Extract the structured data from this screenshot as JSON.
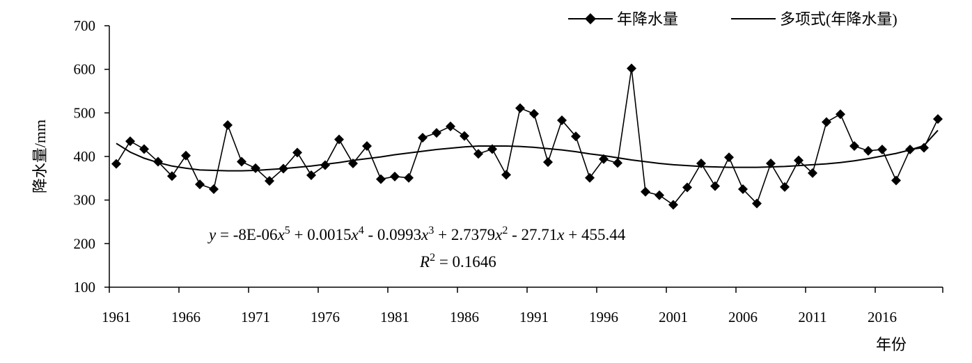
{
  "chart_data": {
    "type": "line",
    "xlabel": "年份",
    "ylabel": "降水量/mm",
    "ylim": [
      100,
      700
    ],
    "yticks": [
      100,
      200,
      300,
      400,
      500,
      600,
      700
    ],
    "xlim": [
      1961,
      2020
    ],
    "xticks": [
      1961,
      1966,
      1971,
      1976,
      1981,
      1986,
      1991,
      1996,
      2001,
      2006,
      2011,
      2016
    ],
    "grid": false,
    "legend_position": "top-right",
    "x": [
      1961,
      1962,
      1963,
      1964,
      1965,
      1966,
      1967,
      1968,
      1969,
      1970,
      1971,
      1972,
      1973,
      1974,
      1975,
      1976,
      1977,
      1978,
      1979,
      1980,
      1981,
      1982,
      1983,
      1984,
      1985,
      1986,
      1987,
      1988,
      1989,
      1990,
      1991,
      1992,
      1993,
      1994,
      1995,
      1996,
      1997,
      1998,
      1999,
      2000,
      2001,
      2002,
      2003,
      2004,
      2005,
      2006,
      2007,
      2008,
      2009,
      2010,
      2011,
      2012,
      2013,
      2014,
      2015,
      2016,
      2017,
      2018,
      2019,
      2020
    ],
    "series": [
      {
        "name": "年降水量",
        "marker": "diamond",
        "color": "#000000",
        "values": [
          383,
          435,
          417,
          388,
          355,
          402,
          336,
          325,
          472,
          388,
          373,
          344,
          372,
          409,
          357,
          380,
          439,
          384,
          424,
          348,
          354,
          351,
          443,
          454,
          469,
          447,
          406,
          417,
          358,
          511,
          498,
          387,
          483,
          446,
          351,
          394,
          385,
          602,
          319,
          311,
          289,
          329,
          384,
          332,
          398,
          325,
          292,
          384,
          330,
          391,
          362,
          479,
          497,
          424,
          413,
          416,
          345,
          416,
          420,
          486
        ]
      },
      {
        "name": "多项式(年降水量)",
        "type": "polynomial trendline",
        "color": "#000000",
        "values": [
          430,
          410,
          396,
          386,
          378,
          373,
          369,
          368,
          367,
          367,
          368,
          370,
          372,
          375,
          378,
          382,
          386,
          391,
          395,
          399,
          404,
          408,
          412,
          416,
          419,
          422,
          424,
          424,
          424,
          423,
          421,
          418,
          415,
          411,
          406,
          402,
          397,
          392,
          388,
          384,
          381,
          379,
          377,
          376,
          375,
          375,
          375,
          376,
          377,
          379,
          381,
          383,
          386,
          390,
          395,
          401,
          407,
          415,
          425,
          460
        ]
      }
    ],
    "annotations": {
      "equation": {
        "y": "y",
        "eq": " = -8E-06",
        "x1": "x",
        "e5": "5",
        "p1": " + 0.0015",
        "x2": "x",
        "e4": "4",
        "p2": " - 0.0993",
        "x3": "x",
        "e3": "3",
        "p3": " + 2.7379",
        "x4": "x",
        "e2": "2",
        "p4": " - 27.71",
        "x5": "x",
        "p5": " + 455.44"
      },
      "r2": {
        "r": "R",
        "exp": "2",
        "value": " = 0.1646"
      }
    }
  }
}
